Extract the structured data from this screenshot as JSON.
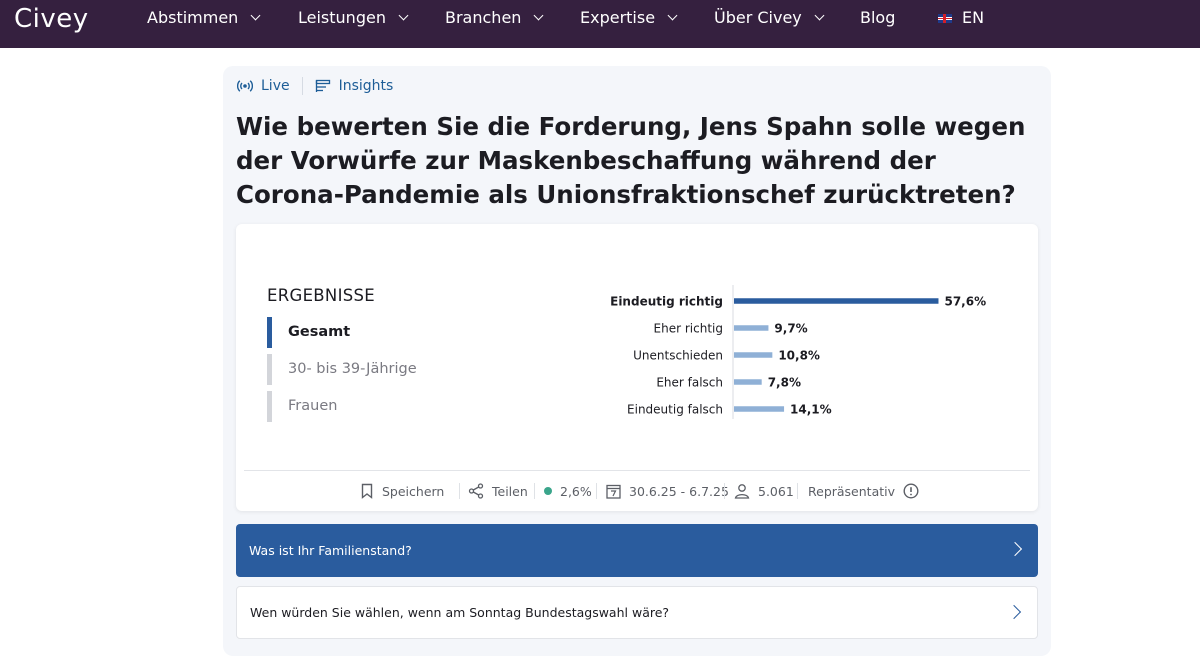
{
  "nav": {
    "logo": "Civey",
    "items": [
      {
        "label": "Abstimmen",
        "dropdown": true
      },
      {
        "label": "Leistungen",
        "dropdown": true
      },
      {
        "label": "Branchen",
        "dropdown": true
      },
      {
        "label": "Expertise",
        "dropdown": true
      },
      {
        "label": "Über Civey",
        "dropdown": true
      },
      {
        "label": "Blog",
        "dropdown": false
      }
    ],
    "lang": "EN"
  },
  "tags": {
    "live": "Live",
    "insights": "Insights"
  },
  "question": "Wie bewerten Sie die Forderung, Jens Spahn solle wegen der Vor­würfe zur Maskenbeschaffung während der Corona-Pandemie als Unionsfraktionschef zurücktreten?",
  "results": {
    "title": "ERGEBNISSE",
    "segments": [
      {
        "label": "Gesamt",
        "active": true
      },
      {
        "label": "30- bis 39-Jährige",
        "active": false
      },
      {
        "label": "Frauen",
        "active": false
      }
    ]
  },
  "chart_data": {
    "type": "bar",
    "orientation": "horizontal",
    "categories": [
      "Eindeutig richtig",
      "Eher richtig",
      "Unentschieden",
      "Eher falsch",
      "Eindeutig falsch"
    ],
    "values": [
      57.6,
      9.7,
      10.8,
      7.8,
      14.1
    ],
    "value_labels": [
      "57,6%",
      "9,7%",
      "10,8%",
      "7,8%",
      "14,1%"
    ],
    "highlight_index": 0,
    "colors": {
      "highlight": "#2a5c9e",
      "default": "#8fb0d6"
    }
  },
  "meta": {
    "save": "Speichern",
    "share": "Teilen",
    "error_margin": "2,6%",
    "date_range": "30.6.25 - 6.7.25",
    "participants": "5.061",
    "representative": "Repräsentativ"
  },
  "related": [
    {
      "label": "Was ist Ihr Familienstand?"
    },
    {
      "label": "Wen würden Sie wählen, wenn am Sonntag Bundestagswahl wäre?"
    }
  ]
}
